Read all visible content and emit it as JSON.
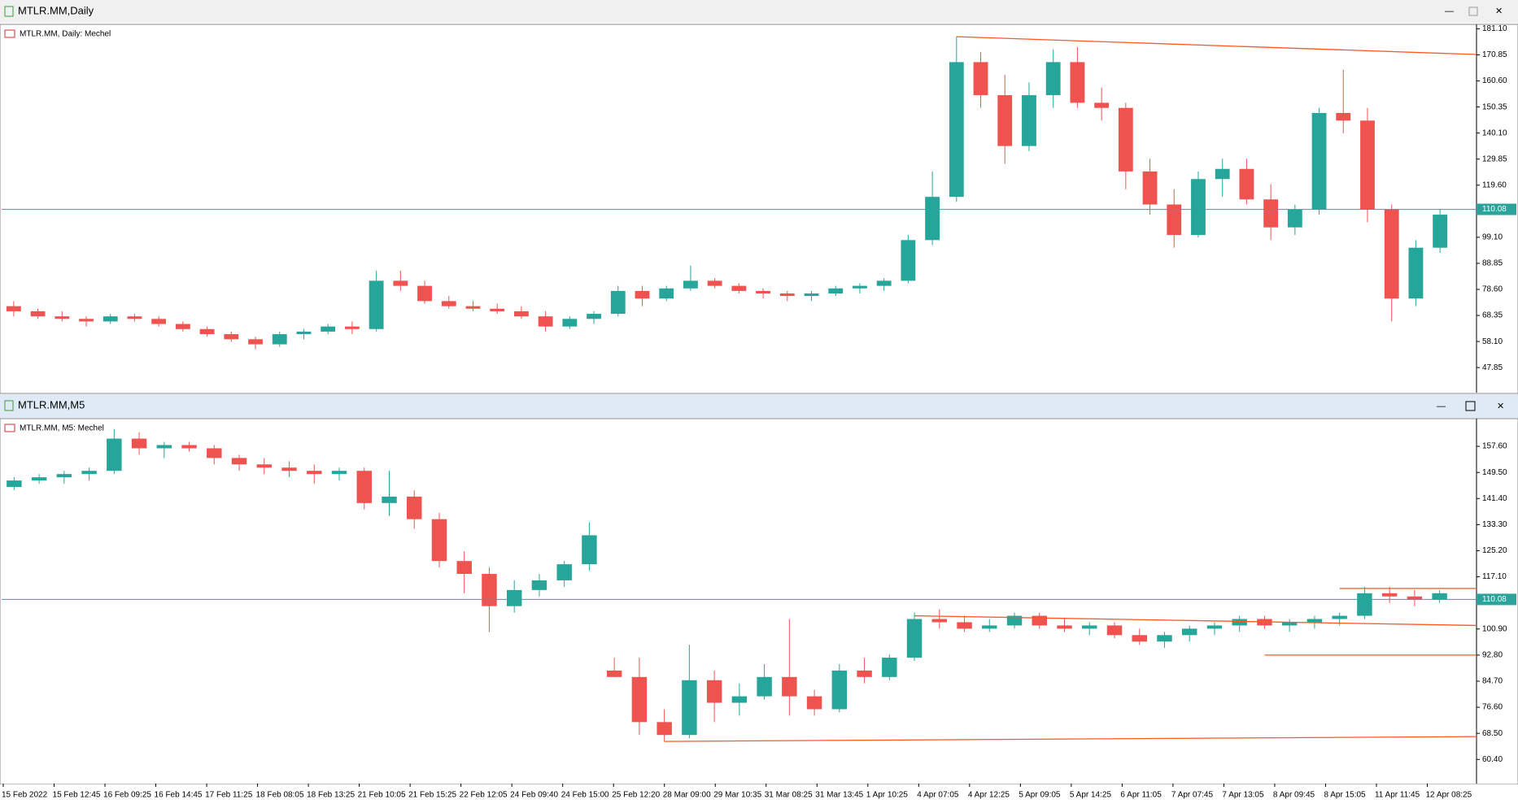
{
  "windows": [
    {
      "title": "MTLR.MM,Daily",
      "chart_data": {
        "type": "candlestick",
        "label": "MTLR.MM, Daily:  Mechel",
        "up_color": "#26a69a",
        "down_color": "#ef5350",
        "line_color": "#ff5722",
        "price_line_color": "#2ba39a",
        "ylim": [
          38,
          182.2
        ],
        "yticks": [
          {
            "value": 181.1,
            "label": "181.10"
          },
          170.85,
          {
            "value": 160.6,
            "label": "160.60"
          },
          150.35,
          {
            "value": 140.1,
            "label": "140.10"
          },
          129.85,
          {
            "value": 119.6,
            "label": "119.60"
          },
          {
            "value": 99.1,
            "label": "99.10"
          },
          88.85,
          {
            "value": 78.6,
            "label": "78.60"
          },
          68.35,
          {
            "value": 58.1,
            "label": "58.10"
          },
          47.85
        ],
        "current_price": 110.08,
        "ohlc": [
          [
            72,
            74,
            68,
            70
          ],
          [
            70,
            71,
            67,
            68
          ],
          [
            68,
            70,
            66,
            67
          ],
          [
            67,
            68,
            64,
            66
          ],
          [
            66,
            69,
            65,
            68
          ],
          [
            68,
            69,
            66,
            67
          ],
          [
            67,
            68,
            64,
            65
          ],
          [
            65,
            66,
            62,
            63
          ],
          [
            63,
            64,
            60,
            61
          ],
          [
            61,
            62,
            58,
            59
          ],
          [
            59,
            60,
            55,
            57
          ],
          [
            57,
            62,
            56,
            61
          ],
          [
            61,
            63,
            59,
            62
          ],
          [
            62,
            65,
            61,
            64
          ],
          [
            64,
            66,
            61,
            63
          ],
          [
            63,
            86,
            62,
            82
          ],
          [
            82,
            86,
            78,
            80
          ],
          [
            80,
            82,
            73,
            74
          ],
          [
            74,
            76,
            71,
            72
          ],
          [
            72,
            74,
            70,
            71
          ],
          [
            71,
            73,
            69,
            70
          ],
          [
            70,
            72,
            67,
            68
          ],
          [
            68,
            70,
            62,
            64
          ],
          [
            64,
            68,
            63,
            67
          ],
          [
            67,
            70,
            65,
            69
          ],
          [
            69,
            80,
            68,
            78
          ],
          [
            78,
            80,
            72,
            75
          ],
          [
            75,
            80,
            74,
            79
          ],
          [
            79,
            88,
            78,
            82
          ],
          [
            82,
            83,
            79,
            80
          ],
          [
            80,
            81,
            77,
            78
          ],
          [
            78,
            79,
            75,
            77
          ],
          [
            77,
            78,
            74,
            76
          ],
          [
            76,
            78,
            74,
            77
          ],
          [
            77,
            80,
            76,
            79
          ],
          [
            79,
            81,
            77,
            80
          ],
          [
            80,
            83,
            78,
            82
          ],
          [
            82,
            100,
            81,
            98
          ],
          [
            98,
            125,
            96,
            115
          ],
          [
            115,
            178,
            113,
            168
          ],
          [
            168,
            172,
            150,
            155
          ],
          [
            155,
            163,
            128,
            135
          ],
          [
            135,
            160,
            133,
            155
          ],
          [
            155,
            173,
            150,
            168
          ],
          [
            168,
            174,
            150,
            152
          ],
          [
            152,
            158,
            145,
            150
          ],
          [
            150,
            152,
            118,
            125
          ],
          [
            125,
            130,
            108,
            112
          ],
          [
            112,
            118,
            95,
            100
          ],
          [
            100,
            125,
            99,
            122
          ],
          [
            122,
            130,
            115,
            126
          ],
          [
            126,
            130,
            112,
            114
          ],
          [
            114,
            120,
            98,
            103
          ],
          [
            103,
            112,
            100,
            110
          ],
          [
            110,
            150,
            108,
            148
          ],
          [
            148,
            165,
            140,
            145
          ],
          [
            145,
            150,
            105,
            110
          ],
          [
            110,
            112,
            66,
            75
          ],
          [
            75,
            98,
            72,
            95
          ],
          [
            95,
            110,
            93,
            108
          ]
        ],
        "trend_lines": [
          {
            "from": [
              39,
              178
            ],
            "to": [
              59,
              171
            ]
          }
        ]
      }
    },
    {
      "title": "MTLR.MM,M5",
      "chart_data": {
        "type": "candlestick",
        "label": "MTLR.MM, M5:  Mechel",
        "up_color": "#26a69a",
        "down_color": "#ef5350",
        "line_color": "#ff5722",
        "price_line_color": "#2ba39a",
        "ylim": [
          52.9,
          165.7
        ],
        "yticks": [
          {
            "value": 157.6,
            "label": "157.60"
          },
          {
            "value": 149.5,
            "label": "149.50"
          },
          {
            "value": 141.4,
            "label": "141.40"
          },
          {
            "value": 133.3,
            "label": "133.30"
          },
          {
            "value": 125.2,
            "label": "125.20"
          },
          {
            "value": 117.1,
            "label": "117.10"
          },
          {
            "value": 100.9,
            "label": "100.90"
          },
          {
            "value": 92.8,
            "label": "92.80"
          },
          {
            "value": 84.7,
            "label": "84.70"
          },
          {
            "value": 76.6,
            "label": "76.60"
          },
          {
            "value": 68.5,
            "label": "68.50"
          },
          {
            "value": 60.4,
            "label": "60.40"
          }
        ],
        "current_price": 110.08,
        "x_labels": [
          "15 Feb 2022",
          "15 Feb 12:45",
          "16 Feb 09:25",
          "16 Feb 14:45",
          "17 Feb 11:25",
          "18 Feb 08:05",
          "18 Feb 13:25",
          "21 Feb 10:05",
          "21 Feb 15:25",
          "22 Feb 12:05",
          "24 Feb 09:40",
          "24 Feb 15:00",
          "25 Feb 12:20",
          "28 Mar 09:00",
          "29 Mar 10:35",
          "31 Mar 08:25",
          "31 Mar 13:45",
          "1 Apr 10:25",
          "4 Apr 07:05",
          "4 Apr 12:25",
          "5 Apr 09:05",
          "5 Apr 14:25",
          "6 Apr 11:05",
          "7 Apr 07:45",
          "7 Apr 13:05",
          "8 Apr 09:45",
          "8 Apr 15:05",
          "11 Apr 11:45",
          "12 Apr 08:25"
        ],
        "ohlc": [
          [
            145,
            148,
            144,
            147
          ],
          [
            147,
            149,
            146,
            148
          ],
          [
            148,
            150,
            146,
            149
          ],
          [
            149,
            151,
            147,
            150
          ],
          [
            150,
            163,
            149,
            160
          ],
          [
            160,
            162,
            155,
            157
          ],
          [
            157,
            159,
            154,
            158
          ],
          [
            158,
            159,
            156,
            157
          ],
          [
            157,
            158,
            152,
            154
          ],
          [
            154,
            155,
            150,
            152
          ],
          [
            152,
            154,
            149,
            151
          ],
          [
            151,
            153,
            148,
            150
          ],
          [
            150,
            152,
            146,
            149
          ],
          [
            149,
            151,
            147,
            150
          ],
          [
            150,
            151,
            138,
            140
          ],
          [
            140,
            150,
            136,
            142
          ],
          [
            142,
            144,
            132,
            135
          ],
          [
            135,
            137,
            120,
            122
          ],
          [
            122,
            125,
            112,
            118
          ],
          [
            118,
            120,
            100,
            108
          ],
          [
            108,
            116,
            106,
            113
          ],
          [
            113,
            118,
            111,
            116
          ],
          [
            116,
            122,
            114,
            121
          ],
          [
            121,
            134,
            119,
            130
          ],
          [
            88,
            92,
            86,
            86
          ],
          [
            86,
            92,
            68,
            72
          ],
          [
            72,
            76,
            66,
            68
          ],
          [
            68,
            96,
            67,
            85
          ],
          [
            85,
            88,
            72,
            78
          ],
          [
            78,
            84,
            74,
            80
          ],
          [
            80,
            90,
            79,
            86
          ],
          [
            86,
            104,
            74,
            80
          ],
          [
            80,
            82,
            74,
            76
          ],
          [
            76,
            90,
            75,
            88
          ],
          [
            88,
            92,
            84,
            86
          ],
          [
            86,
            93,
            85,
            92
          ],
          [
            92,
            106,
            91,
            104
          ],
          [
            104,
            107,
            101,
            103
          ],
          [
            103,
            105,
            100,
            101
          ],
          [
            101,
            104,
            100,
            102
          ],
          [
            102,
            106,
            101,
            105
          ],
          [
            105,
            106,
            101,
            102
          ],
          [
            102,
            104,
            100,
            101
          ],
          [
            101,
            103,
            99,
            102
          ],
          [
            102,
            103,
            98,
            99
          ],
          [
            99,
            101,
            96,
            97
          ],
          [
            97,
            100,
            95,
            99
          ],
          [
            99,
            102,
            97,
            101
          ],
          [
            101,
            103,
            99,
            102
          ],
          [
            102,
            105,
            100,
            104
          ],
          [
            104,
            105,
            101,
            102
          ],
          [
            102,
            104,
            100,
            103
          ],
          [
            103,
            105,
            101,
            104
          ],
          [
            104,
            106,
            102,
            105
          ],
          [
            105,
            114,
            104,
            112
          ],
          [
            112,
            114,
            109,
            111
          ],
          [
            111,
            113,
            108,
            110
          ],
          [
            110,
            113,
            109,
            112
          ]
        ],
        "trend_lines": [
          {
            "from": [
              26,
              66
            ],
            "to": [
              57,
              67.5
            ]
          },
          {
            "from": [
              36,
              105
            ],
            "to": [
              57,
              102
            ]
          },
          {
            "from": [
              50,
              92.8
            ],
            "to": [
              57,
              92.8
            ]
          },
          {
            "from": [
              53,
              113.5
            ],
            "to": [
              57,
              113.5
            ]
          }
        ]
      }
    }
  ]
}
